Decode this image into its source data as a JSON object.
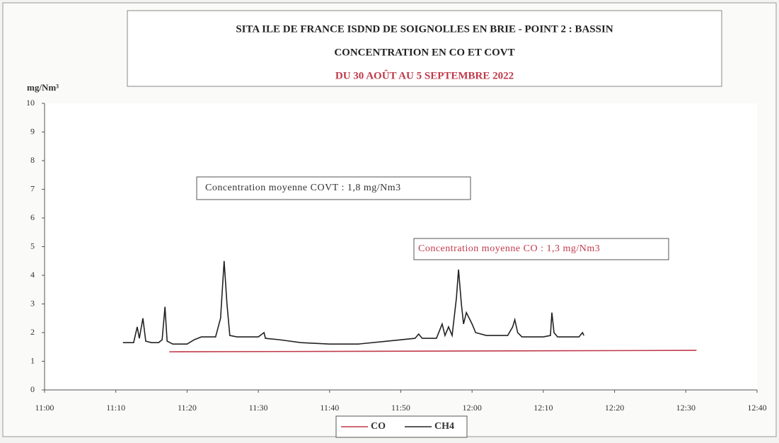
{
  "chart_data": {
    "type": "line",
    "title": "SITA ILE DE FRANCE  ISDND DE SOIGNOLLES EN BRIE - POINT 2 : BASSIN",
    "subtitle": "CONCENTRATION EN CO ET COVT",
    "period": "DU 30 AOÛT AU 5 SEPTEMBRE 2022",
    "y_label": "mg/Nm³",
    "annotations": [
      "Concentration moyenne COVT : 1,8 mg/Nm3",
      "Concentration moyenne CO : 1,3 mg/Nm3"
    ],
    "xlim": [
      0,
      100
    ],
    "xticks": [
      {
        "value": 0,
        "label": "11:00"
      },
      {
        "value": 10,
        "label": "11:10"
      },
      {
        "value": 20,
        "label": "11:20"
      },
      {
        "value": 30,
        "label": "11:30"
      },
      {
        "value": 40,
        "label": "11:40"
      },
      {
        "value": 50,
        "label": "11:50"
      },
      {
        "value": 60,
        "label": "12:00"
      },
      {
        "value": 70,
        "label": "12:10"
      },
      {
        "value": 80,
        "label": "12:20"
      },
      {
        "value": 90,
        "label": "12:30"
      },
      {
        "value": 100,
        "label": "12:40"
      }
    ],
    "ylim": [
      0,
      10
    ],
    "yticks": [
      0,
      1,
      2,
      3,
      4,
      5,
      6,
      7,
      8,
      9,
      10
    ],
    "series": [
      {
        "name": "CO",
        "color": "#c0394a",
        "x": [
          17.5,
          91.5
        ],
        "values": [
          1.33,
          1.38
        ]
      },
      {
        "name": "CH4",
        "color": "#222222",
        "x": [
          11,
          12.5,
          13,
          13.3,
          13.8,
          14.2,
          15,
          16,
          16.5,
          16.9,
          17.2,
          18,
          20,
          21,
          22,
          24,
          24.7,
          25.2,
          25.6,
          26,
          27,
          30,
          30.8,
          31,
          33,
          36,
          40,
          44,
          48,
          52,
          52.5,
          53,
          55,
          55.8,
          56.2,
          56.7,
          57.2,
          57.8,
          58.1,
          58.5,
          58.8,
          59.2,
          59.6,
          60,
          60.5,
          62,
          65,
          65.7,
          66,
          66.4,
          67,
          70,
          71,
          71.2,
          71.5,
          72,
          75,
          75.5,
          75.7
        ],
        "values": [
          1.65,
          1.65,
          2.2,
          1.8,
          2.5,
          1.7,
          1.65,
          1.65,
          1.75,
          2.9,
          1.7,
          1.6,
          1.6,
          1.75,
          1.85,
          1.85,
          2.5,
          4.5,
          3.0,
          1.9,
          1.85,
          1.85,
          2.0,
          1.8,
          1.75,
          1.65,
          1.6,
          1.6,
          1.7,
          1.8,
          1.95,
          1.8,
          1.8,
          2.3,
          1.9,
          2.2,
          1.9,
          3.2,
          4.2,
          3.0,
          2.3,
          2.7,
          2.5,
          2.3,
          2.0,
          1.9,
          1.9,
          2.2,
          2.45,
          2.0,
          1.85,
          1.85,
          1.9,
          2.7,
          2.0,
          1.85,
          1.85,
          2.0,
          1.9
        ]
      }
    ]
  }
}
